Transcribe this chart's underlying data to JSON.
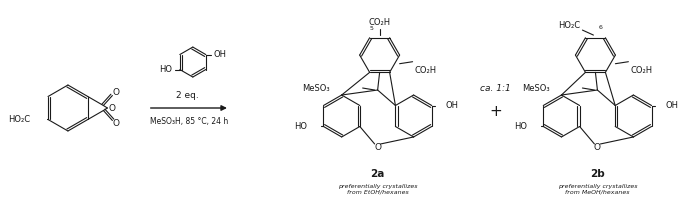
{
  "bg_color": "#ffffff",
  "line_color": "#1a1a1a",
  "fs": 6.5,
  "fs_label": 7.5,
  "fs_small": 5.5,
  "reagent_line1": "2 eq.",
  "reagent_line2": "MeSO₃H, 85 °C, 24 h",
  "compound_2a": "2a",
  "compound_2b": "2b",
  "caption_2a": "preferentially crystallizes\nfrom EtOH/hexanes",
  "caption_2b": "preferentially crystallizes\nfrom MeOH/hexanes",
  "ratio": "ca. 1:1"
}
